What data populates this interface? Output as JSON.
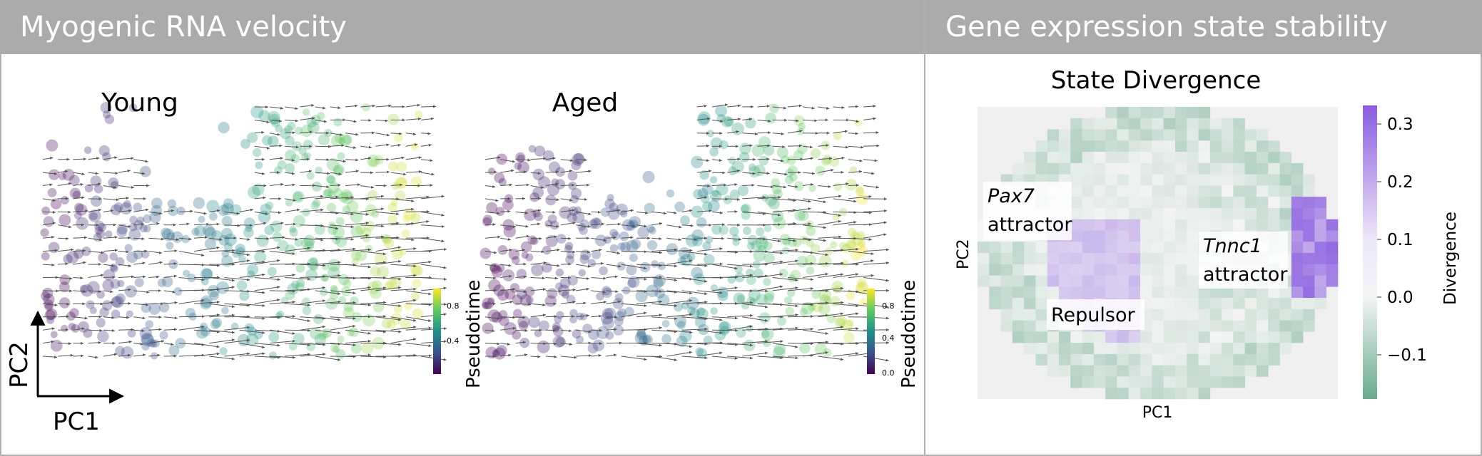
{
  "panels": {
    "left": {
      "title": "Myogenic RNA velocity",
      "subplots": [
        {
          "title": "Young",
          "colorbar_label": "Pseudotime",
          "colorbar_ticks": [
            "0.8",
            "0.4"
          ]
        },
        {
          "title": "Aged",
          "colorbar_label": "Pseudotime",
          "colorbar_ticks": [
            "0.8",
            "0.4",
            "0.0"
          ]
        }
      ],
      "axes": {
        "x": "PC1",
        "y": "PC2"
      },
      "colormap": [
        "#440154",
        "#3b528b",
        "#21918c",
        "#5ec962",
        "#fde725"
      ]
    },
    "right": {
      "title": "Gene expression state stability",
      "plot_title": "State Divergence",
      "xlabel": "PC1",
      "ylabel": "PC2",
      "colorbar_label": "Divergence",
      "colorbar_ticks": [
        "0.3",
        "0.2",
        "0.1",
        "0.0",
        "−0.1"
      ],
      "annotations": [
        {
          "italic": "Pax7",
          "text": "attractor"
        },
        {
          "italic": "Tnnc1",
          "text": "attractor"
        },
        {
          "italic": "",
          "text": "Repulsor"
        }
      ],
      "colormap": [
        "#6aaa8e",
        "#f5f5f5",
        "#8a5ce0"
      ]
    }
  }
}
